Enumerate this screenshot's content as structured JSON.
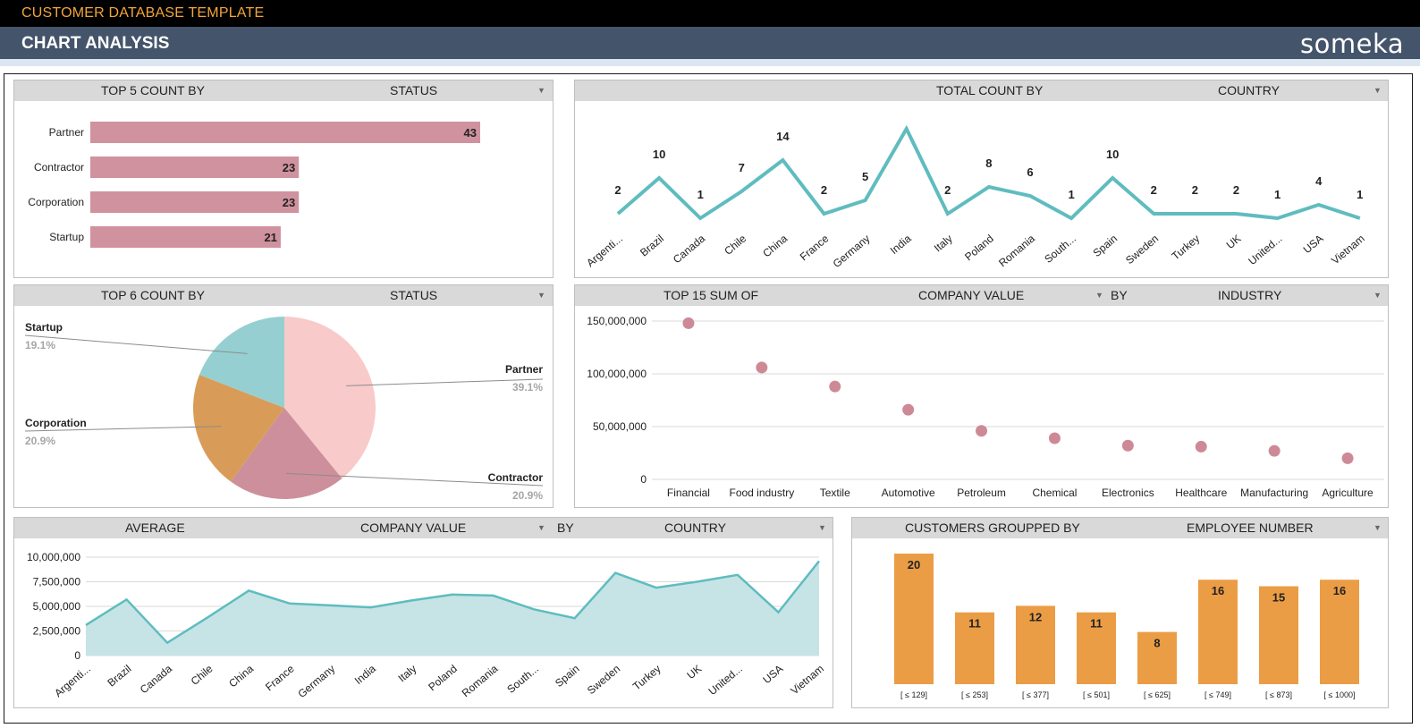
{
  "app": {
    "title": "CUSTOMER DATABASE TEMPLATE",
    "page_title": "CHART ANALYSIS",
    "brand": "someka"
  },
  "colors": {
    "bar_pink": "#d0929e",
    "line_teal": "#5fbcbf",
    "area_fill": "#c6e4e5",
    "scatter_pink": "#cd8a96",
    "bar_orange": "#eb9d45",
    "pie_partner": "#f9caca",
    "pie_contractor": "#cd8f9b",
    "pie_corporation": "#d89c58",
    "pie_startup": "#95cfd2"
  },
  "panels": {
    "p1": {
      "left": "TOP 5 COUNT BY",
      "right": "STATUS"
    },
    "p2": {
      "left": "TOTAL COUNT BY",
      "right": "COUNTRY"
    },
    "p3": {
      "left": "TOP 6 COUNT BY",
      "right": "STATUS"
    },
    "p4": {
      "left": "TOP 15 SUM OF",
      "mid": "COMPANY VALUE",
      "by": "BY",
      "right": "INDUSTRY"
    },
    "p5": {
      "left": "AVERAGE",
      "mid": "COMPANY VALUE",
      "by": "BY",
      "right": "COUNTRY"
    },
    "p6": {
      "left": "CUSTOMERS GROUPPED BY",
      "right": "EMPLOYEE NUMBER"
    }
  },
  "chart_data": [
    {
      "type": "bar",
      "orientation": "horizontal",
      "categories": [
        "Partner",
        "Contractor",
        "Corporation",
        "Startup"
      ],
      "values": [
        43,
        23,
        23,
        21
      ]
    },
    {
      "type": "line",
      "categories": [
        "Argenti...",
        "Brazil",
        "Canada",
        "Chile",
        "China",
        "France",
        "Germany",
        "India",
        "Italy",
        "Poland",
        "Romania",
        "South...",
        "Spain",
        "Sweden",
        "Turkey",
        "UK",
        "United...",
        "USA",
        "Vietnam"
      ],
      "values": [
        2,
        10,
        1,
        7,
        14,
        2,
        5,
        21,
        2,
        8,
        6,
        1,
        10,
        2,
        2,
        2,
        1,
        4,
        1
      ],
      "labels": [
        "2",
        "10",
        "1",
        "7",
        "14",
        "2",
        "5",
        "",
        "2",
        "8",
        "6",
        "1",
        "10",
        "2",
        "2",
        "2",
        "1",
        "4",
        "1"
      ]
    },
    {
      "type": "pie",
      "slices": [
        {
          "label": "Partner",
          "value": 39.1,
          "pct": "39.1%"
        },
        {
          "label": "Contractor",
          "value": 20.9,
          "pct": "20.9%"
        },
        {
          "label": "Corporation",
          "value": 20.9,
          "pct": "20.9%"
        },
        {
          "label": "Startup",
          "value": 19.1,
          "pct": "19.1%"
        }
      ]
    },
    {
      "type": "scatter",
      "categories": [
        "Financial",
        "Food industry",
        "Textile",
        "Automotive",
        "Petroleum",
        "Chemical",
        "Electronics",
        "Healthcare",
        "Manufacturing",
        "Agriculture"
      ],
      "values": [
        148000000,
        106000000,
        88000000,
        66000000,
        46000000,
        39000000,
        32000000,
        31000000,
        27000000,
        20000000
      ],
      "ylim": [
        0,
        150000000
      ],
      "yticks": [
        "0",
        "50,000,000",
        "100,000,000",
        "150,000,000"
      ]
    },
    {
      "type": "area",
      "categories": [
        "Argenti...",
        "Brazil",
        "Canada",
        "Chile",
        "China",
        "France",
        "Germany",
        "India",
        "Italy",
        "Poland",
        "Romania",
        "South...",
        "Spain",
        "Sweden",
        "Turkey",
        "UK",
        "United...",
        "USA",
        "Vietnam"
      ],
      "values": [
        3100000,
        5700000,
        1300000,
        3900000,
        6600000,
        5300000,
        5100000,
        4900000,
        5600000,
        6200000,
        6100000,
        4700000,
        3800000,
        8400000,
        6900000,
        7500000,
        8200000,
        4400000,
        9600000
      ],
      "ylim": [
        0,
        10000000
      ],
      "yticks": [
        "0",
        "2,500,000",
        "5,000,000",
        "7,500,000",
        "10,000,000"
      ]
    },
    {
      "type": "bar",
      "categories": [
        "[ ≤ 129]",
        "[ ≤ 253]",
        "[ ≤ 377]",
        "[ ≤ 501]",
        "[ ≤ 625]",
        "[ ≤ 749]",
        "[ ≤ 873]",
        "[ ≤ 1000]"
      ],
      "values": [
        20,
        11,
        12,
        11,
        8,
        16,
        15,
        16
      ]
    }
  ]
}
